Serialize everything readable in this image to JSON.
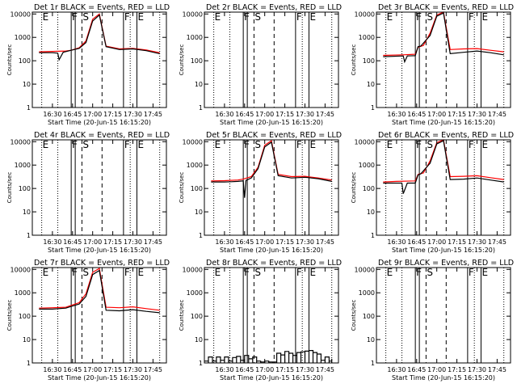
{
  "colors": {
    "events": "#000000",
    "lld": "#ff0000",
    "background": "#ffffff"
  },
  "shared": {
    "xlabel": "Start Time (20-Jun-15 16:15:20)",
    "ylabel": "Counts/sec",
    "x_tick_labels": [
      "16:30",
      "16:45",
      "17:00",
      "17:15",
      "17:30",
      "17:45"
    ],
    "y_tick_labels": [
      "1",
      "10",
      "100",
      "1000",
      "10000"
    ],
    "ylim": [
      1,
      12000
    ],
    "y_scale": "log",
    "xlim": [
      "16:15",
      "17:55"
    ],
    "event_markers": [
      {
        "label": "E",
        "time": "16:22",
        "style": "dotted"
      },
      {
        "label": "",
        "time": "16:34",
        "style": "dotted"
      },
      {
        "label": "F",
        "time": "16:44",
        "style": "solid"
      },
      {
        "label": "",
        "time": "16:47",
        "style": "solid"
      },
      {
        "label": "S",
        "time": "16:52",
        "style": "dashed"
      },
      {
        "label": "",
        "time": "17:07",
        "style": "dashed"
      },
      {
        "label": "F",
        "time": "17:23",
        "style": "solid"
      },
      {
        "label": "",
        "time": "17:28",
        "style": "dotted"
      },
      {
        "label": "E",
        "time": "17:33",
        "style": "solid"
      },
      {
        "label": "",
        "time": "17:50",
        "style": "dotted"
      }
    ]
  },
  "chart_data": [
    {
      "type": "line",
      "title": "Det 1r BLACK = Events, RED = LLD",
      "series": [
        {
          "name": "Events",
          "x": [
            "16:20",
            "16:30",
            "16:34",
            "16:35",
            "16:38",
            "16:44",
            "16:50",
            "16:55",
            "17:00",
            "17:05",
            "17:10",
            "17:20",
            "17:30",
            "17:40",
            "17:50"
          ],
          "y": [
            220,
            220,
            210,
            110,
            230,
            280,
            340,
            600,
            5000,
            9000,
            400,
            300,
            320,
            270,
            200
          ]
        },
        {
          "name": "LLD",
          "x": [
            "16:20",
            "16:30",
            "16:40",
            "16:44",
            "16:50",
            "16:55",
            "17:00",
            "17:05",
            "17:10",
            "17:20",
            "17:30",
            "17:40",
            "17:50"
          ],
          "y": [
            240,
            250,
            260,
            280,
            360,
            700,
            6000,
            10000,
            420,
            320,
            340,
            290,
            220
          ]
        }
      ]
    },
    {
      "type": "line",
      "title": "Det 2r BLACK = Events, RED = LLD",
      "series": [
        {
          "name": "Events",
          "x": [],
          "y": []
        },
        {
          "name": "LLD",
          "x": [],
          "y": []
        }
      ]
    },
    {
      "type": "line",
      "title": "Det 3r BLACK = Events, RED = LLD",
      "series": [
        {
          "name": "Events",
          "x": [
            "16:20",
            "16:35",
            "16:36",
            "16:38",
            "16:44",
            "16:46",
            "16:48",
            "16:55",
            "17:00",
            "17:05",
            "17:10",
            "17:20",
            "17:30",
            "17:40",
            "17:50"
          ],
          "y": [
            150,
            160,
            90,
            160,
            165,
            400,
            420,
            1200,
            8000,
            11000,
            200,
            230,
            260,
            220,
            180
          ]
        },
        {
          "name": "LLD",
          "x": [
            "16:20",
            "16:35",
            "16:44",
            "16:46",
            "16:50",
            "16:55",
            "17:00",
            "17:05",
            "17:10",
            "17:20",
            "17:30",
            "17:40",
            "17:50"
          ],
          "y": [
            170,
            180,
            190,
            380,
            450,
            1500,
            9000,
            12000,
            300,
            320,
            330,
            280,
            240
          ]
        }
      ]
    },
    {
      "type": "line",
      "title": "Det 4r BLACK = Events, RED = LLD",
      "series": [
        {
          "name": "Events",
          "x": [],
          "y": []
        },
        {
          "name": "LLD",
          "x": [],
          "y": []
        }
      ]
    },
    {
      "type": "line",
      "title": "Det 5r BLACK = Events, RED = LLD",
      "series": [
        {
          "name": "Events",
          "x": [
            "16:20",
            "16:30",
            "16:35",
            "16:40",
            "16:44",
            "16:45",
            "16:46",
            "16:50",
            "16:55",
            "17:00",
            "17:05",
            "17:10",
            "17:20",
            "17:30",
            "17:40",
            "17:50"
          ],
          "y": [
            190,
            190,
            195,
            200,
            210,
            40,
            220,
            280,
            700,
            6000,
            9500,
            350,
            280,
            300,
            260,
            200
          ]
        },
        {
          "name": "LLD",
          "x": [
            "16:20",
            "16:30",
            "16:40",
            "16:44",
            "16:50",
            "16:55",
            "17:00",
            "17:05",
            "17:10",
            "17:20",
            "17:30",
            "17:40",
            "17:50"
          ],
          "y": [
            210,
            215,
            230,
            250,
            320,
            800,
            7000,
            11000,
            400,
            320,
            330,
            280,
            230
          ]
        }
      ]
    },
    {
      "type": "line",
      "title": "Det 6r BLACK = Events, RED = LLD",
      "series": [
        {
          "name": "Events",
          "x": [
            "16:20",
            "16:30",
            "16:34",
            "16:35",
            "16:38",
            "16:44",
            "16:46",
            "16:48",
            "16:55",
            "17:00",
            "17:05",
            "17:10",
            "17:20",
            "17:30",
            "17:40",
            "17:50"
          ],
          "y": [
            170,
            170,
            170,
            60,
            170,
            170,
            380,
            420,
            1200,
            8000,
            11000,
            240,
            250,
            280,
            230,
            190
          ]
        },
        {
          "name": "LLD",
          "x": [
            "16:20",
            "16:30",
            "16:44",
            "16:46",
            "16:50",
            "16:55",
            "17:00",
            "17:05",
            "17:10",
            "17:20",
            "17:30",
            "17:40",
            "17:50"
          ],
          "y": [
            190,
            200,
            210,
            400,
            460,
            1500,
            9000,
            12000,
            320,
            330,
            350,
            290,
            240
          ]
        }
      ]
    },
    {
      "type": "line",
      "title": "Det 7r BLACK = Events, RED = LLD",
      "series": [
        {
          "name": "Events",
          "x": [
            "16:20",
            "16:30",
            "16:40",
            "16:44",
            "16:50",
            "16:55",
            "17:00",
            "17:05",
            "17:10",
            "17:20",
            "17:30",
            "17:40",
            "17:50"
          ],
          "y": [
            200,
            200,
            220,
            260,
            330,
            700,
            6000,
            9000,
            180,
            170,
            190,
            160,
            140
          ]
        },
        {
          "name": "LLD",
          "x": [
            "16:20",
            "16:30",
            "16:40",
            "16:44",
            "16:50",
            "16:55",
            "17:00",
            "17:05",
            "17:10",
            "17:20",
            "17:30",
            "17:40",
            "17:50"
          ],
          "y": [
            220,
            230,
            240,
            290,
            380,
            900,
            7500,
            11000,
            240,
            230,
            250,
            210,
            180
          ]
        }
      ]
    },
    {
      "type": "line",
      "title": "Det 8r BLACK = Events, RED = LLD",
      "series": [
        {
          "name": "Events",
          "x": [
            "16:15",
            "16:18",
            "16:21",
            "16:24",
            "16:27",
            "16:30",
            "16:33",
            "16:36",
            "16:39",
            "16:42",
            "16:45",
            "16:48",
            "16:51",
            "16:54",
            "16:57",
            "17:00",
            "17:03",
            "17:06",
            "17:09",
            "17:12",
            "17:15",
            "17:18",
            "17:21",
            "17:24",
            "17:27",
            "17:30",
            "17:33",
            "17:36",
            "17:39",
            "17:42",
            "17:45",
            "17:48",
            "17:50"
          ],
          "y": [
            1.2,
            1.8,
            1.2,
            1.8,
            1.3,
            1.8,
            1.2,
            1.7,
            1.9,
            1.3,
            2.1,
            1.5,
            1.8,
            1.2,
            1.1,
            1.2,
            1.1,
            1.1,
            2.6,
            2.2,
            3.1,
            2.6,
            2.1,
            2.8,
            3.0,
            3.2,
            3.4,
            2.8,
            2.4,
            1.3,
            1.8,
            1.2,
            1.5
          ]
        },
        {
          "name": "LLD",
          "x": [],
          "y": []
        }
      ]
    },
    {
      "type": "line",
      "title": "Det 9r BLACK = Events, RED = LLD",
      "series": [
        {
          "name": "Events",
          "x": [],
          "y": []
        },
        {
          "name": "LLD",
          "x": [],
          "y": []
        }
      ]
    }
  ]
}
